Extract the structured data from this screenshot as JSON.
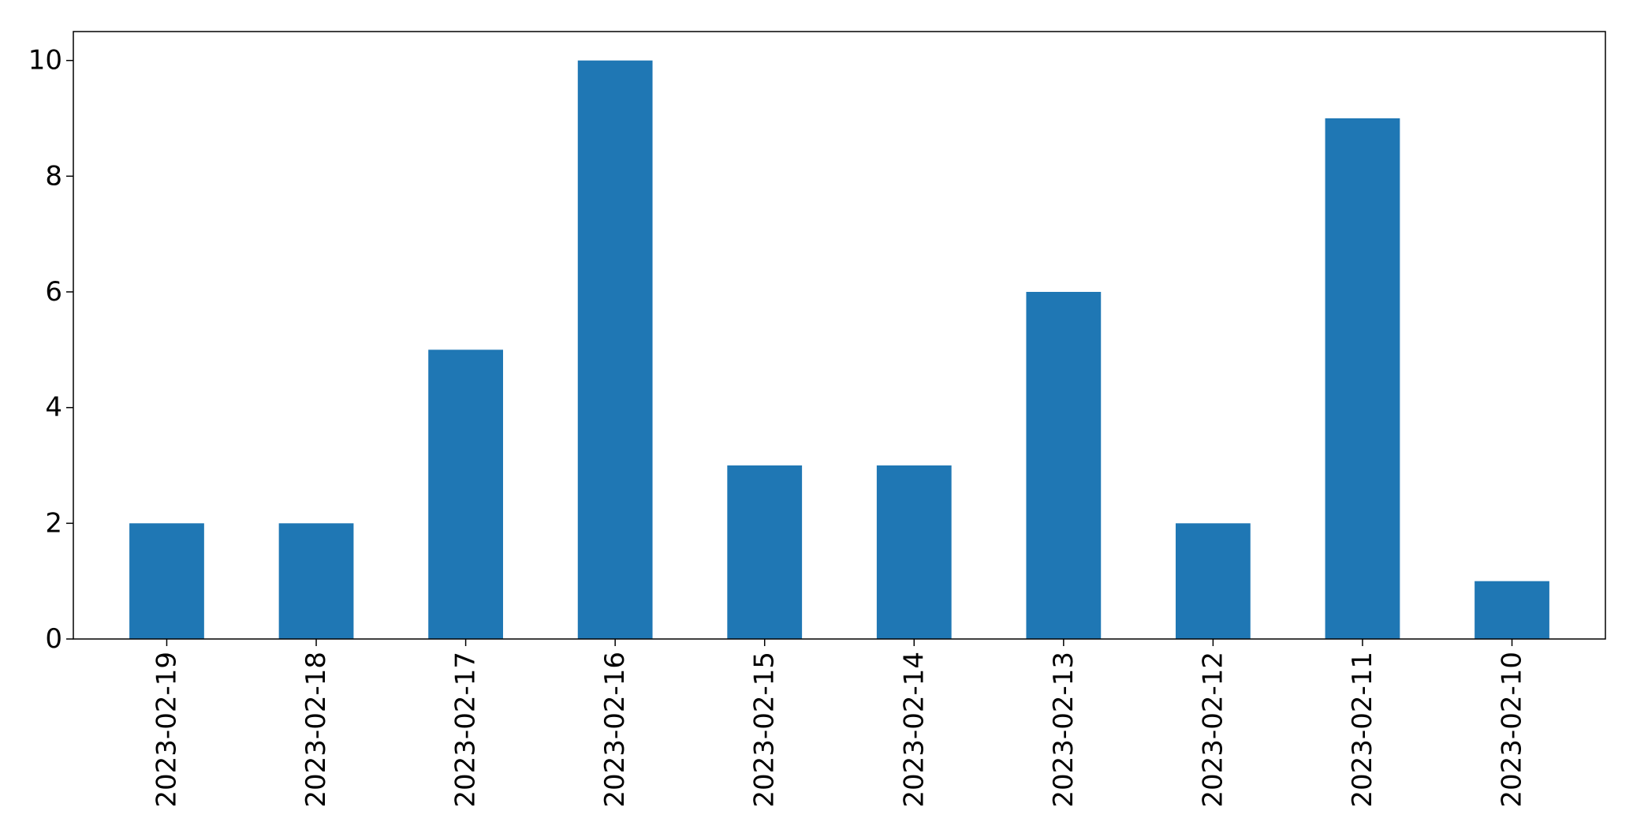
{
  "chart_data": {
    "type": "bar",
    "title": "",
    "xlabel": "",
    "ylabel": "",
    "categories": [
      "2023-02-19",
      "2023-02-18",
      "2023-02-17",
      "2023-02-16",
      "2023-02-15",
      "2023-02-14",
      "2023-02-13",
      "2023-02-12",
      "2023-02-11",
      "2023-02-10"
    ],
    "values": [
      2,
      2,
      5,
      10,
      3,
      3,
      6,
      2,
      9,
      1
    ],
    "ylim": [
      0,
      10.5
    ],
    "yticks": [
      "0",
      "2",
      "4",
      "6",
      "8",
      "10"
    ],
    "bar_color": "#1f77b4",
    "grid": false,
    "legend": "none"
  }
}
